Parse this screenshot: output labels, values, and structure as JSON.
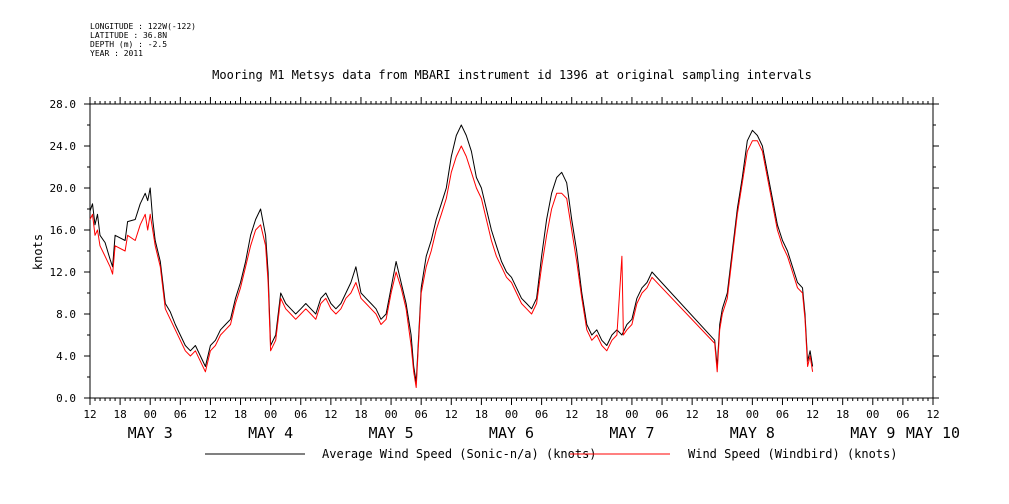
{
  "meta_lines": [
    "LONGITUDE : 122W(-122)",
    "LATITUDE : 36.8N",
    "DEPTH (m) : -2.5",
    "YEAR : 2011"
  ],
  "chart_data": {
    "type": "line",
    "title": "Mooring M1 Metsys data from MBARI instrument id 1396 at original sampling intervals",
    "ylabel": "knots",
    "ylim": [
      0,
      28
    ],
    "yticks": [
      "0.0",
      "4.0",
      "8.0",
      "12.0",
      "16.0",
      "20.0",
      "24.0",
      "28.0"
    ],
    "xlim_hours": [
      0,
      168
    ],
    "xtick_hour_labels": [
      "12",
      "18",
      "00",
      "06",
      "12",
      "18",
      "00",
      "06",
      "12",
      "18",
      "00",
      "06",
      "12",
      "18",
      "00",
      "06",
      "12",
      "18",
      "00",
      "06",
      "12",
      "18",
      "00",
      "06",
      "12",
      "18",
      "00",
      "06",
      "12"
    ],
    "date_labels": [
      {
        "label": "MAY  3",
        "hour": 12
      },
      {
        "label": "MAY  4",
        "hour": 36
      },
      {
        "label": "MAY  5",
        "hour": 60
      },
      {
        "label": "MAY  6",
        "hour": 84
      },
      {
        "label": "MAY  7",
        "hour": 108
      },
      {
        "label": "MAY  8",
        "hour": 132
      },
      {
        "label": "MAY  9",
        "hour": 156
      },
      {
        "label": "MAY 10",
        "hour": 168
      }
    ],
    "legend_position": "bottom",
    "series": [
      {
        "name": "Average Wind Speed (Sonic-n/a) (knots)",
        "color": "#000000",
        "points": [
          [
            0,
            17.8
          ],
          [
            0.5,
            18.5
          ],
          [
            1,
            16.5
          ],
          [
            1.5,
            17.5
          ],
          [
            2,
            15.5
          ],
          [
            3,
            14.8
          ],
          [
            4,
            13.2
          ],
          [
            4.5,
            12.5
          ],
          [
            5,
            15.5
          ],
          [
            7,
            15.0
          ],
          [
            7.5,
            16.8
          ],
          [
            9,
            17.0
          ],
          [
            10,
            18.5
          ],
          [
            11,
            19.5
          ],
          [
            11.5,
            18.8
          ],
          [
            12,
            20.0
          ],
          [
            12.5,
            17.0
          ],
          [
            13,
            15.0
          ],
          [
            14,
            13.0
          ],
          [
            15,
            9.0
          ],
          [
            16,
            8.2
          ],
          [
            17,
            7.0
          ],
          [
            18,
            6.0
          ],
          [
            19,
            5.0
          ],
          [
            20,
            4.5
          ],
          [
            21,
            5.0
          ],
          [
            22,
            4.0
          ],
          [
            23,
            3.0
          ],
          [
            24,
            5.0
          ],
          [
            25,
            5.5
          ],
          [
            26,
            6.5
          ],
          [
            27,
            7.0
          ],
          [
            28,
            7.5
          ],
          [
            29,
            9.5
          ],
          [
            30,
            11.0
          ],
          [
            31,
            13.0
          ],
          [
            32,
            15.5
          ],
          [
            33,
            17.0
          ],
          [
            34,
            18.0
          ],
          [
            35,
            15.5
          ],
          [
            35.5,
            12.0
          ],
          [
            36,
            5.0
          ],
          [
            37,
            6.0
          ],
          [
            38,
            10.0
          ],
          [
            39,
            9.0
          ],
          [
            40,
            8.5
          ],
          [
            41,
            8.0
          ],
          [
            42,
            8.5
          ],
          [
            43,
            9.0
          ],
          [
            44,
            8.5
          ],
          [
            45,
            8.0
          ],
          [
            46,
            9.5
          ],
          [
            47,
            10.0
          ],
          [
            48,
            9.0
          ],
          [
            49,
            8.5
          ],
          [
            50,
            9.0
          ],
          [
            51,
            10.0
          ],
          [
            52,
            11.0
          ],
          [
            53,
            12.5
          ],
          [
            54,
            10.0
          ],
          [
            55,
            9.5
          ],
          [
            56,
            9.0
          ],
          [
            57,
            8.5
          ],
          [
            58,
            7.5
          ],
          [
            59,
            8.0
          ],
          [
            60,
            10.5
          ],
          [
            61,
            13.0
          ],
          [
            62,
            11.0
          ],
          [
            63,
            9.0
          ],
          [
            64,
            6.0
          ],
          [
            64.5,
            3.0
          ],
          [
            65,
            1.5
          ],
          [
            66,
            10.5
          ],
          [
            67,
            13.5
          ],
          [
            68,
            15.0
          ],
          [
            69,
            17.0
          ],
          [
            70,
            18.5
          ],
          [
            71,
            20.0
          ],
          [
            72,
            23.0
          ],
          [
            73,
            25.0
          ],
          [
            74,
            26.0
          ],
          [
            75,
            25.0
          ],
          [
            76,
            23.5
          ],
          [
            77,
            21.0
          ],
          [
            78,
            20.0
          ],
          [
            79,
            18.0
          ],
          [
            80,
            16.0
          ],
          [
            81,
            14.5
          ],
          [
            82,
            13.0
          ],
          [
            83,
            12.0
          ],
          [
            84,
            11.5
          ],
          [
            85,
            10.5
          ],
          [
            86,
            9.5
          ],
          [
            87,
            9.0
          ],
          [
            88,
            8.5
          ],
          [
            89,
            9.5
          ],
          [
            90,
            13.5
          ],
          [
            91,
            17.0
          ],
          [
            92,
            19.5
          ],
          [
            93,
            21.0
          ],
          [
            94,
            21.5
          ],
          [
            95,
            20.5
          ],
          [
            96,
            17.0
          ],
          [
            97,
            14.0
          ],
          [
            98,
            10.0
          ],
          [
            99,
            7.0
          ],
          [
            100,
            6.0
          ],
          [
            101,
            6.5
          ],
          [
            102,
            5.5
          ],
          [
            103,
            5.0
          ],
          [
            104,
            6.0
          ],
          [
            105,
            6.5
          ],
          [
            106,
            6.0
          ],
          [
            107,
            7.0
          ],
          [
            108,
            7.5
          ],
          [
            109,
            9.5
          ],
          [
            110,
            10.5
          ],
          [
            111,
            11.0
          ],
          [
            112,
            12.0
          ],
          [
            124.5,
            5.5
          ],
          [
            125,
            3.0
          ],
          [
            125.5,
            7.0
          ],
          [
            126,
            8.5
          ],
          [
            127,
            10.0
          ],
          [
            128,
            14.0
          ],
          [
            129,
            18.0
          ],
          [
            130,
            21.0
          ],
          [
            131,
            24.5
          ],
          [
            132,
            25.5
          ],
          [
            133,
            25.0
          ],
          [
            134,
            24.0
          ],
          [
            135,
            21.5
          ],
          [
            136,
            19.0
          ],
          [
            137,
            16.5
          ],
          [
            138,
            15.0
          ],
          [
            139,
            14.0
          ],
          [
            140,
            12.5
          ],
          [
            141,
            11.0
          ],
          [
            142,
            10.5
          ],
          [
            142.5,
            8.0
          ],
          [
            143,
            3.5
          ],
          [
            143.5,
            4.5
          ],
          [
            144,
            3.0
          ]
        ]
      },
      {
        "name": "Wind Speed (Windbird) (knots)",
        "color": "#ff0000",
        "points": [
          [
            0,
            17.0
          ],
          [
            0.5,
            17.5
          ],
          [
            1,
            15.5
          ],
          [
            1.5,
            16.0
          ],
          [
            2,
            14.5
          ],
          [
            3,
            13.5
          ],
          [
            4,
            12.5
          ],
          [
            4.5,
            11.8
          ],
          [
            5,
            14.5
          ],
          [
            7,
            14.0
          ],
          [
            7.5,
            15.5
          ],
          [
            9,
            15.0
          ],
          [
            10,
            16.5
          ],
          [
            11,
            17.5
          ],
          [
            11.5,
            16.0
          ],
          [
            12,
            17.5
          ],
          [
            12.5,
            16.0
          ],
          [
            13,
            14.5
          ],
          [
            14,
            12.5
          ],
          [
            15,
            8.5
          ],
          [
            16,
            7.5
          ],
          [
            17,
            6.5
          ],
          [
            18,
            5.5
          ],
          [
            19,
            4.5
          ],
          [
            20,
            4.0
          ],
          [
            21,
            4.5
          ],
          [
            22,
            3.5
          ],
          [
            23,
            2.5
          ],
          [
            24,
            4.5
          ],
          [
            25,
            5.0
          ],
          [
            26,
            6.0
          ],
          [
            27,
            6.5
          ],
          [
            28,
            7.0
          ],
          [
            29,
            9.0
          ],
          [
            30,
            10.5
          ],
          [
            31,
            12.5
          ],
          [
            32,
            14.5
          ],
          [
            33,
            16.0
          ],
          [
            34,
            16.5
          ],
          [
            35,
            14.5
          ],
          [
            35.5,
            11.0
          ],
          [
            36,
            4.5
          ],
          [
            37,
            5.5
          ],
          [
            38,
            9.5
          ],
          [
            39,
            8.5
          ],
          [
            40,
            8.0
          ],
          [
            41,
            7.5
          ],
          [
            42,
            8.0
          ],
          [
            43,
            8.5
          ],
          [
            44,
            8.0
          ],
          [
            45,
            7.5
          ],
          [
            46,
            9.0
          ],
          [
            47,
            9.5
          ],
          [
            48,
            8.5
          ],
          [
            49,
            8.0
          ],
          [
            50,
            8.5
          ],
          [
            51,
            9.5
          ],
          [
            52,
            10.0
          ],
          [
            53,
            11.0
          ],
          [
            54,
            9.5
          ],
          [
            55,
            9.0
          ],
          [
            56,
            8.5
          ],
          [
            57,
            8.0
          ],
          [
            58,
            7.0
          ],
          [
            59,
            7.5
          ],
          [
            60,
            10.0
          ],
          [
            61,
            12.0
          ],
          [
            62,
            10.5
          ],
          [
            63,
            8.5
          ],
          [
            64,
            5.0
          ],
          [
            64.5,
            2.5
          ],
          [
            65,
            1.0
          ],
          [
            66,
            10.0
          ],
          [
            67,
            12.5
          ],
          [
            68,
            14.0
          ],
          [
            69,
            16.0
          ],
          [
            70,
            17.5
          ],
          [
            71,
            19.0
          ],
          [
            72,
            21.5
          ],
          [
            73,
            23.0
          ],
          [
            74,
            24.0
          ],
          [
            75,
            23.0
          ],
          [
            76,
            21.5
          ],
          [
            77,
            20.0
          ],
          [
            78,
            19.0
          ],
          [
            79,
            17.0
          ],
          [
            80,
            15.0
          ],
          [
            81,
            13.5
          ],
          [
            82,
            12.5
          ],
          [
            83,
            11.5
          ],
          [
            84,
            11.0
          ],
          [
            85,
            10.0
          ],
          [
            86,
            9.0
          ],
          [
            87,
            8.5
          ],
          [
            88,
            8.0
          ],
          [
            89,
            9.0
          ],
          [
            90,
            12.5
          ],
          [
            91,
            15.5
          ],
          [
            92,
            18.0
          ],
          [
            93,
            19.5
          ],
          [
            94,
            19.5
          ],
          [
            95,
            19.0
          ],
          [
            96,
            16.0
          ],
          [
            97,
            13.0
          ],
          [
            98,
            9.5
          ],
          [
            99,
            6.5
          ],
          [
            100,
            5.5
          ],
          [
            101,
            6.0
          ],
          [
            102,
            5.0
          ],
          [
            103,
            4.5
          ],
          [
            104,
            5.5
          ],
          [
            105,
            6.0
          ],
          [
            106,
            13.5
          ],
          [
            106.3,
            6.0
          ],
          [
            107,
            6.5
          ],
          [
            108,
            7.0
          ],
          [
            109,
            9.0
          ],
          [
            110,
            10.0
          ],
          [
            111,
            10.5
          ],
          [
            112,
            11.5
          ],
          [
            124.5,
            5.2
          ],
          [
            125,
            2.5
          ],
          [
            125.5,
            6.5
          ],
          [
            126,
            8.0
          ],
          [
            127,
            9.5
          ],
          [
            128,
            13.5
          ],
          [
            129,
            17.5
          ],
          [
            130,
            20.5
          ],
          [
            131,
            23.5
          ],
          [
            132,
            24.5
          ],
          [
            133,
            24.5
          ],
          [
            134,
            23.5
          ],
          [
            135,
            21.0
          ],
          [
            136,
            18.5
          ],
          [
            137,
            16.0
          ],
          [
            138,
            14.5
          ],
          [
            139,
            13.5
          ],
          [
            140,
            12.0
          ],
          [
            141,
            10.5
          ],
          [
            142,
            10.0
          ],
          [
            142.5,
            7.5
          ],
          [
            143,
            3.0
          ],
          [
            143.5,
            4.0
          ],
          [
            144,
            2.5
          ]
        ]
      }
    ]
  }
}
